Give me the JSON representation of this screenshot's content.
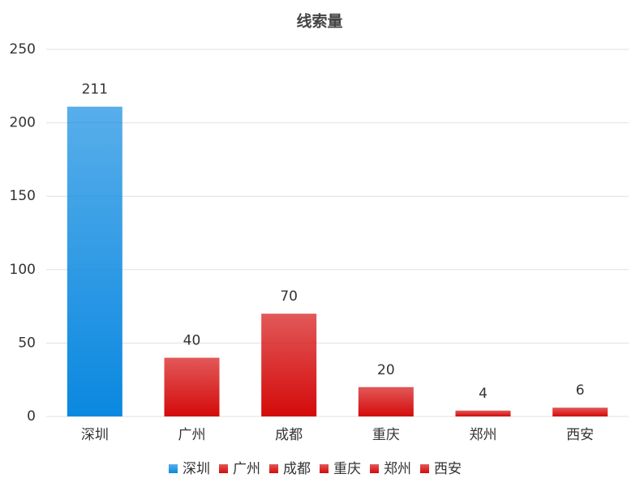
{
  "chart_data": {
    "type": "bar",
    "title": "线索量",
    "categories": [
      "深圳",
      "广州",
      "成都",
      "重庆",
      "郑州",
      "西安"
    ],
    "values": [
      211,
      40,
      70,
      20,
      4,
      6
    ],
    "colors": [
      "#0a88e0",
      "#d40a0a",
      "#d40a0a",
      "#d40a0a",
      "#d40a0a",
      "#d40a0a"
    ],
    "ylim": [
      0,
      250
    ],
    "yticks": [
      0,
      50,
      100,
      150,
      200,
      250
    ],
    "grid": true,
    "legend": "bottom"
  }
}
